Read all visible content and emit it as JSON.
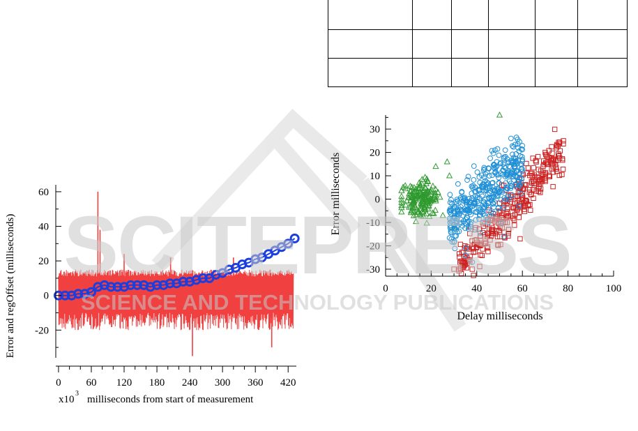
{
  "table": {
    "rows": [
      [
        "",
        "",
        "",
        "",
        "",
        ""
      ],
      [
        "",
        "",
        "",
        "",
        "",
        ""
      ],
      [
        "",
        "",
        "",
        "",
        "",
        ""
      ]
    ]
  },
  "watermark": {
    "title": "SCITEPRESS",
    "subtitle": "SCIENCE AND TECHNOLOGY PUBLICATIONS"
  },
  "chart_data": [
    {
      "type": "line",
      "title": "",
      "xlabel": "x10³ milliseconds from start of measurement",
      "xlabel_prefix": "x10",
      "xlabel_exponent": "3",
      "xlabel_text": "milliseconds from start of measurement",
      "ylabel": "Error and regOffset (milliseconds)",
      "xlim": [
        -5,
        435
      ],
      "ylim": [
        -36,
        64
      ],
      "xticks": [
        0,
        60,
        120,
        180,
        240,
        300,
        360,
        420
      ],
      "yticks": [
        -20,
        0,
        20,
        40,
        60
      ],
      "series": [
        {
          "kind": "noise",
          "color": "#f04040",
          "x_range": [
            0,
            430
          ],
          "band": [
            -20,
            15
          ],
          "spikes": [
            [
              72,
              60
            ],
            [
              76,
              38
            ],
            [
              120,
              24
            ],
            [
              205,
              22
            ],
            [
              245,
              -35
            ],
            [
              320,
              22
            ],
            [
              390,
              -30
            ]
          ]
        },
        {
          "kind": "markers",
          "color": "#1a3fe0",
          "x": [
            0,
            12,
            24,
            36,
            48,
            60,
            72,
            84,
            96,
            108,
            120,
            132,
            144,
            156,
            168,
            180,
            192,
            204,
            216,
            228,
            240,
            252,
            264,
            276,
            288,
            300,
            312,
            324,
            336,
            348,
            360,
            372,
            384,
            396,
            408,
            420,
            432
          ],
          "y": [
            0,
            0,
            0,
            1,
            1,
            2,
            5,
            6,
            5,
            5,
            5,
            6,
            6,
            6,
            5,
            6,
            6,
            7,
            7,
            8,
            8,
            9,
            10,
            10,
            12,
            13,
            15,
            16,
            18,
            19,
            21,
            22,
            24,
            26,
            28,
            30,
            33
          ]
        }
      ]
    },
    {
      "type": "scatter",
      "title": "",
      "xlabel": "Delay milliseconds",
      "ylabel": "Error milliseconds",
      "xlim": [
        0,
        100
      ],
      "ylim": [
        -33,
        36
      ],
      "xticks": [
        0,
        20,
        40,
        60,
        80,
        100
      ],
      "yticks": [
        -30,
        -20,
        -10,
        0,
        10,
        20,
        30
      ],
      "series": [
        {
          "marker": "triangle",
          "color": "#2e9a2e",
          "center": [
            15,
            0
          ],
          "spread": [
            8,
            6
          ],
          "extra": [
            [
              50,
              36
            ],
            [
              22,
              14
            ],
            [
              27,
              16
            ],
            [
              30,
              -12
            ],
            [
              28,
              10
            ]
          ]
        },
        {
          "marker": "circle",
          "color": "#1f8fd6",
          "center": [
            45,
            2
          ],
          "spread": [
            10,
            9
          ],
          "extra": [
            [
              55,
              26
            ],
            [
              48,
              21
            ],
            [
              60,
              17
            ],
            [
              35,
              -24
            ],
            [
              38,
              -27
            ],
            [
              52,
              -16
            ]
          ]
        },
        {
          "marker": "square",
          "color": "#cc2222",
          "center": [
            58,
            -5
          ],
          "spread": [
            12,
            12
          ],
          "extra": [
            [
              78,
              25
            ],
            [
              75,
              22
            ],
            [
              70,
              20
            ],
            [
              30,
              -30
            ],
            [
              32,
              -34
            ],
            [
              59,
              -17
            ],
            [
              35,
              -28
            ],
            [
              38,
              -30
            ]
          ]
        }
      ]
    }
  ]
}
